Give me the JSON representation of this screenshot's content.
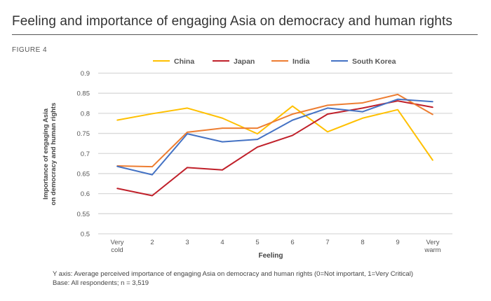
{
  "title": "Feeling and importance of engaging Asia on democracy and human rights",
  "figure_label": "FIGURE 4",
  "footnotes": [
    "Y axis: Average perceived importance of engaging Asia on democracy and human rights (0=Not important, 1=Very Critical)",
    "Base: All respondents; n = 3,519"
  ],
  "chart_data": {
    "type": "line",
    "xlabel": "Feeling",
    "ylabel": "Importance of engaging Asia on democracy and human rights",
    "categories": [
      [
        "Very",
        "cold"
      ],
      [
        "2"
      ],
      [
        "3"
      ],
      [
        "4"
      ],
      [
        "5"
      ],
      [
        "6"
      ],
      [
        "7"
      ],
      [
        "8"
      ],
      [
        "9"
      ],
      [
        "Very",
        "warm"
      ]
    ],
    "ylim": [
      0.5,
      0.9
    ],
    "yticks": [
      0.5,
      0.55,
      0.6,
      0.65,
      0.7,
      0.75,
      0.8,
      0.85,
      0.9
    ],
    "ytick_labels": [
      "0.5",
      "0.55",
      "0.6",
      "0.65",
      "0.7",
      "0.75",
      "0.8",
      "0.85",
      "0.9"
    ],
    "grid": true,
    "legend_position": "top",
    "series": [
      {
        "name": "China",
        "color": "#FFC000",
        "values": [
          0.783,
          0.799,
          0.813,
          0.788,
          0.749,
          0.818,
          0.754,
          0.788,
          0.809,
          0.683
        ]
      },
      {
        "name": "Japan",
        "color": "#C0202A",
        "values": [
          0.613,
          0.595,
          0.665,
          0.659,
          0.716,
          0.745,
          0.798,
          0.813,
          0.831,
          0.815
        ]
      },
      {
        "name": "India",
        "color": "#ED7D31",
        "values": [
          0.669,
          0.667,
          0.753,
          0.763,
          0.763,
          0.798,
          0.82,
          0.826,
          0.847,
          0.797
        ]
      },
      {
        "name": "South Korea",
        "color": "#4472C4",
        "values": [
          0.668,
          0.647,
          0.749,
          0.729,
          0.735,
          0.783,
          0.813,
          0.804,
          0.835,
          0.829
        ]
      }
    ]
  }
}
